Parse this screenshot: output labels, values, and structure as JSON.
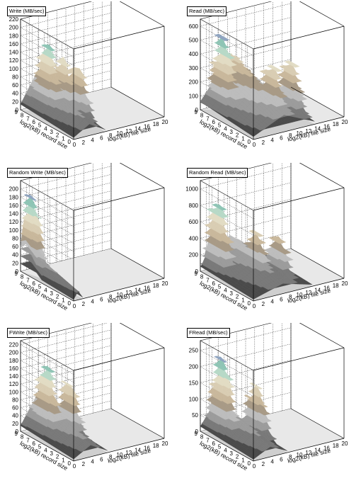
{
  "chart_data": [
    {
      "type": "surface3d",
      "title": "Write (MB/sec)",
      "xlabel": "log2(kB) file size",
      "ylabel": "log2(kB) record size",
      "xlim": [
        0,
        20
      ],
      "ylim": [
        0,
        9
      ],
      "zlim": [
        0,
        220
      ],
      "x_ticks": [
        0,
        2,
        4,
        6,
        8,
        10,
        12,
        14,
        16,
        18,
        20
      ],
      "y_ticks": [
        0,
        1,
        2,
        3,
        4,
        5,
        6,
        7,
        8,
        9
      ],
      "z_ticks": [
        0,
        20,
        40,
        60,
        80,
        100,
        120,
        140,
        160,
        180,
        200,
        220
      ],
      "peak_x": 3,
      "peak_y": 6,
      "peak_z": 175,
      "peaks": [
        [
          2.7,
          6.5,
          175
        ],
        [
          4.7,
          5.5,
          145
        ],
        [
          6.0,
          4.0,
          135
        ]
      ],
      "plateau_z": 80,
      "x_extent": [
        0,
        7.0
      ]
    },
    {
      "type": "surface3d",
      "title": "Read (MB/sec)",
      "xlabel": "log2(kB) file size",
      "ylabel": "log2(kB) record size",
      "xlim": [
        0,
        20
      ],
      "ylim": [
        0,
        9
      ],
      "zlim": [
        0,
        650
      ],
      "x_ticks": [
        0,
        2,
        4,
        6,
        8,
        10,
        12,
        14,
        16,
        18,
        20
      ],
      "y_ticks": [
        0,
        1,
        2,
        3,
        4,
        5,
        6,
        7,
        8,
        9
      ],
      "z_ticks": [
        0,
        100,
        200,
        300,
        400,
        500,
        600
      ],
      "peaks": [
        [
          2.5,
          7.0,
          560
        ],
        [
          8.0,
          3.0,
          410
        ],
        [
          12.0,
          3.0,
          400
        ]
      ],
      "plateau_z": 350,
      "x_extent": [
        0,
        13.5
      ]
    },
    {
      "type": "surface3d",
      "title": "Random Write (MB/sec)",
      "xlabel": "log2(kB) file size",
      "ylabel": "log2(kB) record size",
      "xlim": [
        0,
        20
      ],
      "ylim": [
        0,
        9
      ],
      "zlim": [
        0,
        220
      ],
      "x_ticks": [
        0,
        2,
        4,
        6,
        8,
        10,
        12,
        14,
        16,
        18,
        20
      ],
      "y_ticks": [
        0,
        1,
        2,
        3,
        4,
        5,
        6,
        7,
        8,
        9
      ],
      "z_ticks": [
        0,
        20,
        40,
        60,
        80,
        100,
        120,
        140,
        160,
        180,
        200
      ],
      "peaks": [
        [
          1.0,
          8.0,
          190
        ]
      ],
      "plateau_z": 60,
      "x_extent": [
        0,
        2.0
      ]
    },
    {
      "type": "surface3d",
      "title": "Random Read (MB/sec)",
      "xlabel": "log2(kB) file size",
      "ylabel": "log2(kB) record size",
      "xlim": [
        0,
        20
      ],
      "ylim": [
        0,
        9
      ],
      "zlim": [
        0,
        1100
      ],
      "x_ticks": [
        0,
        2,
        4,
        6,
        8,
        10,
        12,
        14,
        16,
        18,
        20
      ],
      "y_ticks": [
        0,
        1,
        2,
        3,
        4,
        5,
        6,
        7,
        8,
        9
      ],
      "z_ticks": [
        0,
        200,
        400,
        600,
        800,
        1000
      ],
      "peaks": [
        [
          2.0,
          7.5,
          900
        ],
        [
          6.5,
          4.5,
          560
        ],
        [
          10.0,
          3.5,
          520
        ]
      ],
      "plateau_z": 350,
      "x_extent": [
        0,
        13.0
      ]
    },
    {
      "type": "surface3d",
      "title": "FWrite (MB/sec)",
      "xlabel": "log2(kB) file size",
      "ylabel": "log2(kB) record size",
      "xlim": [
        0,
        20
      ],
      "ylim": [
        0,
        9
      ],
      "zlim": [
        0,
        230
      ],
      "x_ticks": [
        0,
        2,
        4,
        6,
        8,
        10,
        12,
        14,
        16,
        18,
        20
      ],
      "y_ticks": [
        0,
        1,
        2,
        3,
        4,
        5,
        6,
        7,
        8,
        9
      ],
      "z_ticks": [
        0,
        20,
        40,
        60,
        80,
        100,
        120,
        140,
        160,
        180,
        200,
        220
      ],
      "peaks": [
        [
          2.5,
          6.5,
          185
        ],
        [
          5.5,
          5.0,
          145
        ]
      ],
      "plateau_z": 85,
      "x_extent": [
        0,
        7.5
      ]
    },
    {
      "type": "surface3d",
      "title": "FRead (MB/sec)",
      "xlabel": "log2(kB) file size",
      "ylabel": "log2(kB) record size",
      "xlim": [
        0,
        20
      ],
      "ylim": [
        0,
        9
      ],
      "zlim": [
        0,
        280
      ],
      "x_ticks": [
        0,
        2,
        4,
        6,
        8,
        10,
        12,
        14,
        16,
        18,
        20
      ],
      "y_ticks": [
        0,
        1,
        2,
        3,
        4,
        5,
        6,
        7,
        8,
        9
      ],
      "z_ticks": [
        0,
        50,
        100,
        150,
        200,
        250
      ],
      "peaks": [
        [
          2.2,
          7.0,
          245
        ],
        [
          6.5,
          4.5,
          165
        ]
      ],
      "plateau_z": 90,
      "x_extent": [
        0,
        7.5
      ]
    }
  ]
}
